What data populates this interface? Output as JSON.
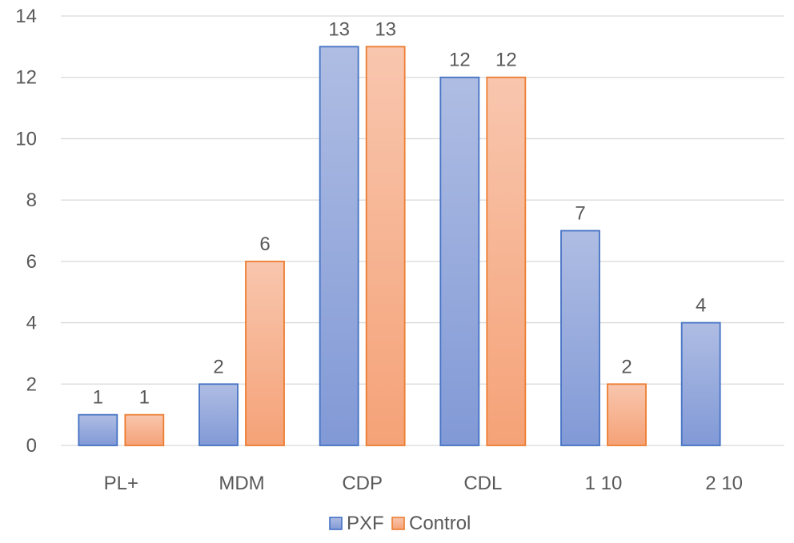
{
  "chart_data": {
    "type": "bar",
    "title": "",
    "xlabel": "",
    "ylabel": "",
    "categories": [
      "PL+",
      "MDM",
      "CDP",
      "CDL",
      "1 10",
      "2 10"
    ],
    "series": [
      {
        "name": "PXF",
        "values": [
          1,
          2,
          13,
          12,
          7,
          4
        ],
        "color": "#8FA6DA",
        "border": "#4472C4"
      },
      {
        "name": "Control",
        "values": [
          1,
          6,
          13,
          12,
          2,
          null
        ],
        "color": "#F7B191",
        "border": "#ED7D31"
      }
    ],
    "ylim": [
      0,
      14
    ],
    "yticks": [
      0,
      2,
      4,
      6,
      8,
      10,
      12,
      14
    ],
    "grid": true,
    "legend_position": "bottom"
  }
}
